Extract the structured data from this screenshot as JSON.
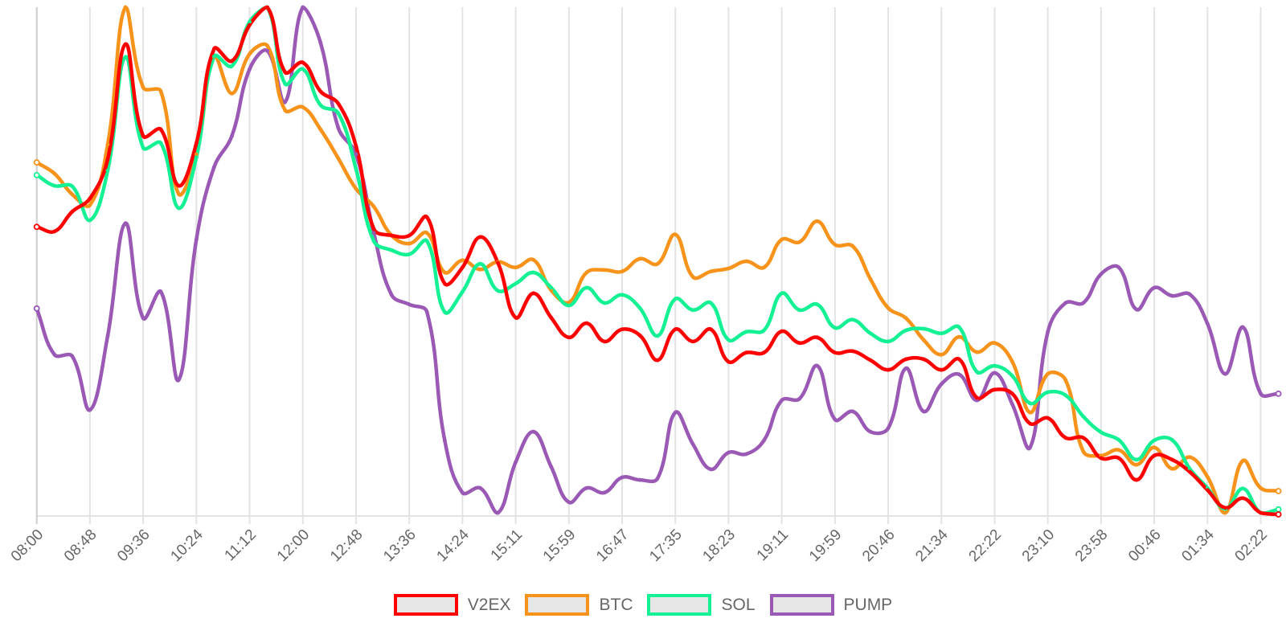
{
  "chart_data": {
    "type": "line",
    "title": "",
    "xlabel": "",
    "ylabel": "",
    "ylim": [
      0,
      100
    ],
    "y_axis_visible": false,
    "grid": "vertical",
    "legend_position": "bottom",
    "x_tick_labels": [
      "08:00",
      "08:48",
      "09:36",
      "10:24",
      "11:12",
      "12:00",
      "12:48",
      "13:36",
      "14:24",
      "15:11",
      "15:59",
      "16:47",
      "17:35",
      "18:23",
      "19:11",
      "19:59",
      "20:46",
      "21:34",
      "22:22",
      "23:10",
      "23:58",
      "00:46",
      "01:34",
      "02:22"
    ],
    "points_per_tick": 3,
    "series": [
      {
        "name": "V2EX",
        "color": "#ff0000",
        "values": [
          56.7,
          55.8,
          59.7,
          62.3,
          70.0,
          92.7,
          74.6,
          75.9,
          64.8,
          73.2,
          91.8,
          89.4,
          96.5,
          100,
          87.2,
          89.1,
          83.4,
          81.0,
          72.6,
          56.3,
          55.0,
          55.0,
          58.6,
          45.5,
          48.7,
          54.7,
          49.6,
          38.8,
          43.6,
          38.8,
          34.9,
          37.7,
          34.1,
          36.5,
          35.3,
          30.4,
          36.5,
          34.1,
          36.5,
          30.1,
          31.9,
          31.9,
          36.1,
          33.8,
          34.9,
          31.9,
          32.2,
          30.4,
          28.5,
          30.6,
          30.6,
          28.5,
          30.6,
          23.0,
          24.6,
          23.8,
          17.9,
          19.0,
          15.1,
          15.1,
          11.1,
          11.1,
          6.8,
          11.6,
          10.8,
          8.4,
          4.8,
          1.3,
          3.2,
          0.3,
          0.0
        ]
      },
      {
        "name": "BTC",
        "color": "#f7931a",
        "values": [
          69.4,
          67.2,
          63.1,
          61.0,
          72.9,
          100,
          84.2,
          83.4,
          63.2,
          71.0,
          90.2,
          83.0,
          90.8,
          92.4,
          79.7,
          80.3,
          75.9,
          70.2,
          64.2,
          60.7,
          55.0,
          53.4,
          55.5,
          47.7,
          50.1,
          48.3,
          49.8,
          48.7,
          50.2,
          44.2,
          41.8,
          47.7,
          48.2,
          47.9,
          50.4,
          49.4,
          55.2,
          46.8,
          47.9,
          48.5,
          49.9,
          48.7,
          54.2,
          53.7,
          57.8,
          53.2,
          52.9,
          46.4,
          40.7,
          38.7,
          34.4,
          31.5,
          35.0,
          32.0,
          33.8,
          30.1,
          20.1,
          27.7,
          26.5,
          12.4,
          11.6,
          12.7,
          9.8,
          13.2,
          9.0,
          11.3,
          7.4,
          0.3,
          10.6,
          5.2,
          4.6
        ]
      },
      {
        "name": "SOL",
        "color": "#14f195",
        "values": [
          66.9,
          64.8,
          64.7,
          58.0,
          67.8,
          90.2,
          72.3,
          73.2,
          60.4,
          70.4,
          90.3,
          88.4,
          97.1,
          100,
          84.9,
          87.8,
          80.7,
          79.1,
          68.1,
          53.9,
          52.1,
          51.3,
          53.9,
          39.9,
          43.9,
          49.4,
          44.1,
          45.5,
          47.7,
          44.7,
          41.2,
          44.7,
          41.7,
          43.3,
          40.7,
          35.2,
          42.5,
          40.3,
          41.7,
          34.4,
          36.0,
          36.3,
          43.6,
          40.3,
          41.4,
          36.8,
          38.4,
          35.7,
          34.1,
          36.3,
          36.6,
          35.7,
          36.9,
          28.1,
          29.3,
          27.3,
          21.9,
          24.1,
          23.5,
          19.3,
          16.2,
          14.7,
          10.8,
          14.6,
          14.7,
          9.0,
          5.2,
          1.1,
          5.1,
          0.3,
          1.0
        ]
      },
      {
        "name": "PUMP",
        "color": "#9b59b6",
        "values": [
          40.6,
          31.5,
          31.2,
          20.6,
          35.2,
          57.4,
          38.7,
          43.9,
          26.5,
          54.2,
          68.5,
          74.6,
          87.8,
          91.4,
          81.3,
          100,
          93.0,
          76.2,
          71.0,
          55.5,
          43.3,
          41.4,
          39.9,
          14.6,
          4.3,
          5.2,
          0.3,
          10.3,
          16.3,
          9.4,
          2.4,
          5.2,
          4.3,
          7.3,
          6.8,
          7.1,
          20.1,
          13.8,
          8.9,
          12.2,
          11.9,
          14.6,
          22.5,
          22.8,
          29.3,
          18.7,
          20.3,
          16.3,
          17.0,
          28.8,
          20.3,
          25.7,
          27.6,
          22.5,
          27.9,
          21.7,
          13.2,
          36.0,
          41.7,
          41.7,
          47.4,
          48.7,
          40.4,
          44.7,
          43.1,
          43.4,
          37.6,
          27.7,
          36.9,
          23.8,
          23.8
        ]
      }
    ]
  }
}
